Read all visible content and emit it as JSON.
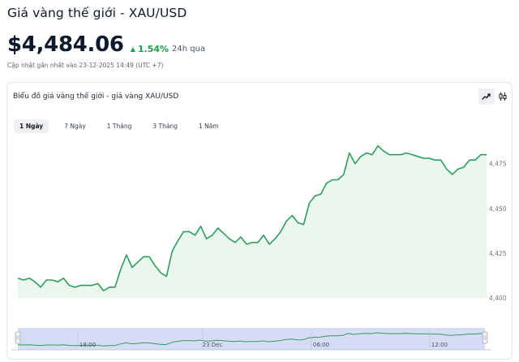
{
  "header": {
    "title": "Giá vàng thế giới - XAU/USD",
    "price": "$4,484.06",
    "change": "1.54%",
    "period": "24h qua",
    "updated": "Cập nhật gần nhất vào 23-12-2025 14:49 (UTC +7)"
  },
  "card": {
    "title": "Biểu đồ giá vàng thế giới - giá vàng XAU/USD",
    "tabs": [
      "1 Ngày",
      "7 Ngày",
      "1 Tháng",
      "3 Tháng",
      "1 Năm"
    ],
    "active_tab": "1 Ngày",
    "icons": [
      "line-chart-icon",
      "candlestick-icon"
    ]
  },
  "colors": {
    "accent_green": "#16a34a",
    "line": "#2e9e5b",
    "area": "#eaf6ee",
    "navigator_fill": "#d6dcf5"
  },
  "chart_data": {
    "type": "area",
    "y_ticks": [
      "4,400",
      "4,425",
      "4,450",
      "4,475"
    ],
    "ylim": [
      4400,
      4485
    ],
    "x_ticks": [
      "18:00",
      "23 Dec",
      "06:00",
      "12:00"
    ],
    "series": [
      {
        "values": [
          4411,
          4410,
          4411,
          4409,
          4406,
          4410,
          4410,
          4409,
          4411,
          4407,
          4406,
          4407,
          4407,
          4407,
          4408,
          4404,
          4406,
          4406,
          4416,
          4424,
          4417,
          4420,
          4423,
          4423,
          4418,
          4414,
          4412,
          4426,
          4432,
          4437,
          4437,
          4435,
          4440,
          4433,
          4435,
          4439,
          4436,
          4433,
          4431,
          4434,
          4430,
          4431,
          4431,
          4435,
          4430,
          4433,
          4437,
          4443,
          4446,
          4442,
          4441,
          4453,
          4457,
          4458,
          4464,
          4466,
          4466,
          4469,
          4481,
          4475,
          4479,
          4481,
          4480,
          4485,
          4482,
          4480,
          4480,
          4480,
          4481,
          4480,
          4479,
          4478,
          4478,
          4477,
          4477,
          4472,
          4469,
          4472,
          4473,
          4477,
          4477,
          4480,
          4480
        ]
      }
    ],
    "grid": false,
    "legend": "none"
  }
}
